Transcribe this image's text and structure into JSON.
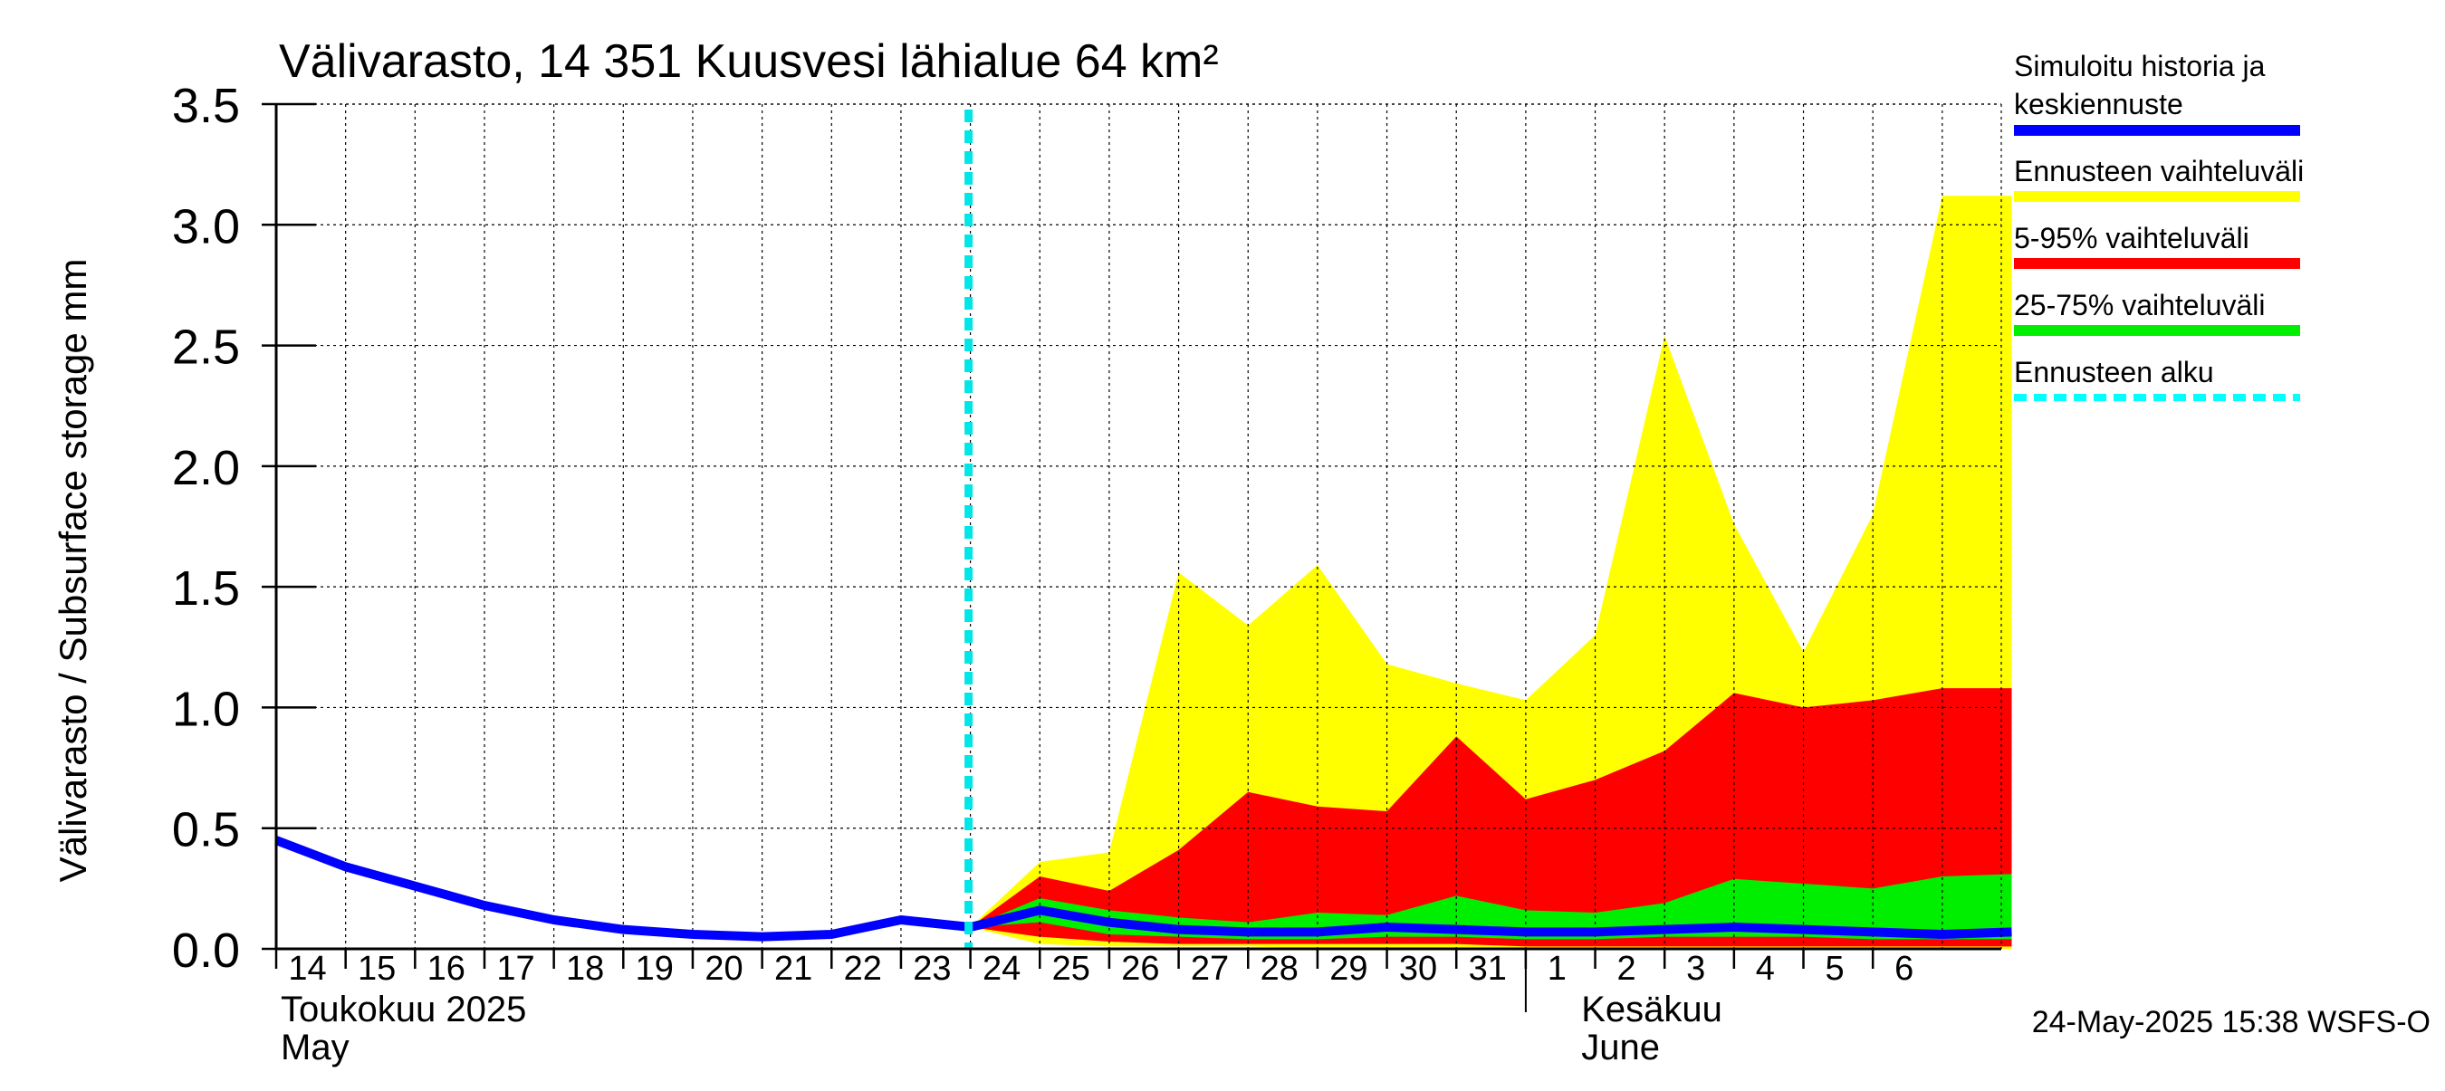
{
  "chart_data": {
    "type": "area",
    "title": "Välivarasto, 14 351 Kuusvesi lähialue 64 km²",
    "ylabel": "Välivarasto / Subsurface storage  mm",
    "ylim": [
      0,
      3.5
    ],
    "yticks": [
      0.0,
      0.5,
      1.0,
      1.5,
      2.0,
      2.5,
      3.0,
      3.5
    ],
    "ytick_labels": [
      "0.0",
      "0.5",
      "1.0",
      "1.5",
      "2.0",
      "2.5",
      "3.0",
      "3.5"
    ],
    "x_days": [
      "14",
      "15",
      "16",
      "17",
      "18",
      "19",
      "20",
      "21",
      "22",
      "23",
      "24",
      "25",
      "26",
      "27",
      "28",
      "29",
      "30",
      "31",
      "1",
      "2",
      "3",
      "4",
      "5",
      "6"
    ],
    "month_labels": {
      "may_fi": "Toukokuu  2025",
      "may_en": "May",
      "june_fi": "Kesäkuu",
      "june_en": "June"
    },
    "forecast_start_index": 10,
    "history": {
      "name": "Simuloitu historia ja keskiennuste",
      "index": [
        0,
        1,
        2,
        3,
        4,
        5,
        6,
        7,
        8,
        9,
        10
      ],
      "values": [
        0.45,
        0.34,
        0.26,
        0.18,
        0.12,
        0.08,
        0.06,
        0.05,
        0.06,
        0.12,
        0.09
      ]
    },
    "forecast": {
      "index": [
        10,
        11,
        12,
        13,
        14,
        15,
        16,
        17,
        18,
        19,
        20,
        21,
        22,
        23,
        24,
        25
      ],
      "median": [
        0.09,
        0.16,
        0.11,
        0.08,
        0.07,
        0.07,
        0.09,
        0.08,
        0.07,
        0.07,
        0.08,
        0.09,
        0.08,
        0.07,
        0.06,
        0.07
      ],
      "min": [
        0.09,
        0.02,
        0.01,
        0.01,
        0.01,
        0.0,
        0.0,
        0.0,
        0.0,
        0.0,
        0.0,
        0.0,
        0.0,
        0.0,
        0.0,
        0.0
      ],
      "max": [
        0.09,
        0.36,
        0.4,
        1.56,
        1.34,
        1.59,
        1.18,
        1.1,
        1.03,
        1.3,
        2.54,
        1.76,
        1.23,
        1.8,
        3.12,
        3.12
      ],
      "p5": [
        0.09,
        0.05,
        0.03,
        0.02,
        0.02,
        0.02,
        0.02,
        0.02,
        0.01,
        0.01,
        0.01,
        0.01,
        0.01,
        0.01,
        0.01,
        0.01
      ],
      "p95": [
        0.09,
        0.3,
        0.24,
        0.41,
        0.65,
        0.59,
        0.57,
        0.88,
        0.62,
        0.7,
        0.82,
        1.06,
        1.0,
        1.03,
        1.08,
        1.08
      ],
      "p25": [
        0.09,
        0.11,
        0.06,
        0.05,
        0.04,
        0.04,
        0.05,
        0.05,
        0.04,
        0.04,
        0.05,
        0.05,
        0.05,
        0.04,
        0.04,
        0.04
      ],
      "p75": [
        0.09,
        0.21,
        0.16,
        0.13,
        0.11,
        0.15,
        0.14,
        0.22,
        0.16,
        0.15,
        0.19,
        0.29,
        0.27,
        0.25,
        0.3,
        0.31
      ]
    },
    "legend": [
      {
        "label": "Simuloitu historia ja",
        "label2": "keskiennuste",
        "color": "#0000ff",
        "style": "solid"
      },
      {
        "label": "Ennusteen vaihteluväli",
        "color": "#ffff00",
        "style": "solid"
      },
      {
        "label": "5-95% vaihteluväli",
        "color": "#ff0000",
        "style": "solid"
      },
      {
        "label": "25-75% vaihteluväli",
        "color": "#00ee00",
        "style": "solid"
      },
      {
        "label": "Ennusteen alku",
        "color": "#00ffff",
        "style": "dashed"
      }
    ],
    "colors": {
      "history": "#0000ff",
      "range": "#ffff00",
      "p5_95": "#ff0000",
      "p25_75": "#00ee00",
      "forecast_start": "#00e5e5",
      "grid": "#000000"
    },
    "grid": true,
    "legend_position": "right",
    "footer": "24-May-2025 15:38 WSFS-O"
  }
}
